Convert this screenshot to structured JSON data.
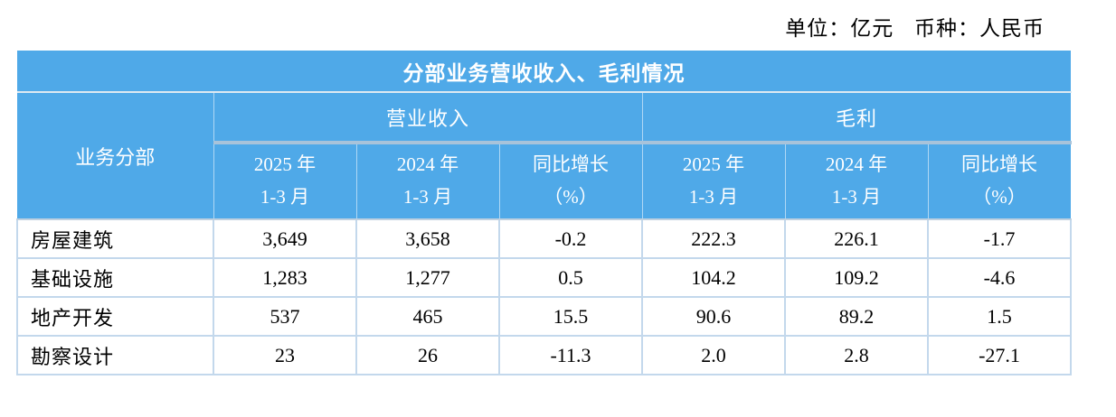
{
  "annotation": {
    "unit": "单位：亿元",
    "currency": "币种：人民币"
  },
  "table": {
    "title": "分部业务营收收入、毛利情况",
    "header": {
      "segment_label": "业务分部",
      "groups": [
        {
          "label": "营业收入"
        },
        {
          "label": "毛利"
        }
      ],
      "subcolumns": [
        {
          "line1": "2025 年",
          "line2": "1-3 月"
        },
        {
          "line1": "2024 年",
          "line2": "1-3 月"
        },
        {
          "line1": "同比增长",
          "line2": "（%）"
        },
        {
          "line1": "2025 年",
          "line2": "1-3 月"
        },
        {
          "line1": "2024 年",
          "line2": "1-3 月"
        },
        {
          "line1": "同比增长",
          "line2": "（%）"
        }
      ]
    },
    "rows": [
      {
        "segment": "房屋建筑",
        "values": [
          "3,649",
          "3,658",
          "-0.2",
          "222.3",
          "226.1",
          "-1.7"
        ]
      },
      {
        "segment": "基础设施",
        "values": [
          "1,283",
          "1,277",
          "0.5",
          "104.2",
          "109.2",
          "-4.6"
        ]
      },
      {
        "segment": "地产开发",
        "values": [
          "537",
          "465",
          "15.5",
          "90.6",
          "89.2",
          "1.5"
        ]
      },
      {
        "segment": "勘察设计",
        "values": [
          "23",
          "26",
          "-11.3",
          "2.0",
          "2.8",
          "-27.1"
        ]
      }
    ]
  },
  "colors": {
    "header_blue": "#4FA9E8",
    "grid_line": "#C3D8EC",
    "group_divider": "#A8C3DA",
    "header_text": "#FFFFFF",
    "body_text": "#000000"
  }
}
